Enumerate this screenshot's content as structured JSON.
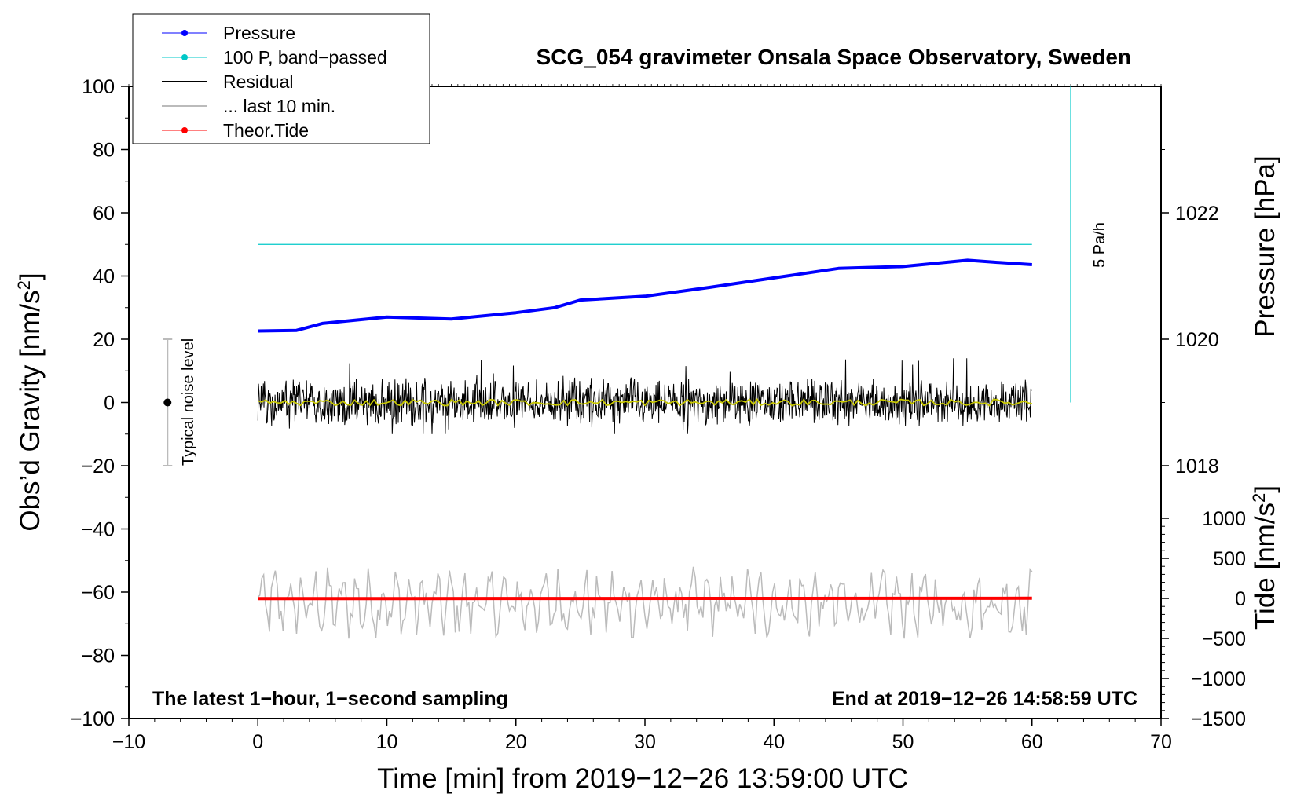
{
  "chart_data": {
    "type": "line",
    "title": "SCG_054 gravimeter Onsala Space Observatory, Sweden",
    "xlabel": "Time [min] from 2019−12−26 13:59:00 UTC",
    "ylabel": "Obs’d Gravity [nm/s",
    "ylabel_sup": "2",
    "ylabel_close": "]",
    "y2label_pressure": "Pressure [hPa]",
    "y2label_tide": "Tide [nm/s",
    "y2label_tide_sup": "2",
    "y2label_tide_close": "]",
    "xlim": [
      -10,
      70
    ],
    "ylim": [
      -100,
      100
    ],
    "x_ticks": [
      -10,
      0,
      10,
      20,
      30,
      40,
      50,
      60,
      70
    ],
    "x_tick_labels": [
      "−10",
      "0",
      "10",
      "20",
      "30",
      "40",
      "50",
      "60",
      "70"
    ],
    "y_ticks": [
      -100,
      -80,
      -60,
      -40,
      -20,
      0,
      20,
      40,
      60,
      80,
      100
    ],
    "y_tick_labels": [
      "−100",
      "−80",
      "−60",
      "−40",
      "−20",
      "0",
      "20",
      "40",
      "60",
      "80",
      "100"
    ],
    "pressure_ticks": [
      1018,
      1020,
      1022
    ],
    "pressure_tick_labels": [
      "1018",
      "1020",
      "1022"
    ],
    "tide_ticks": [
      -1500,
      -1000,
      -500,
      0,
      500,
      1000
    ],
    "tide_tick_labels": [
      "−1500",
      "−1000",
      "−500",
      "0",
      "500",
      "1000"
    ],
    "pressure_axis_range_hPa": [
      1014,
      1024
    ],
    "tide_axis_range_nm_s2": [
      -1500,
      1000
    ],
    "legend": [
      {
        "label": "Pressure",
        "color": "#0000ff",
        "marker": "dot"
      },
      {
        "label": "100 P, band−passed",
        "color": "#00c8c8",
        "marker": "dot"
      },
      {
        "label": "Residual",
        "color": "#000000",
        "marker": "line"
      },
      {
        "label": "... last 10 min.",
        "color": "#bbbbbb",
        "marker": "line"
      },
      {
        "label": "Theor.Tide",
        "color": "#ff0000",
        "marker": "dot"
      }
    ],
    "series": [
      {
        "name": "Pressure",
        "axis": "pressure",
        "color": "#0000ff",
        "x": [
          0,
          3,
          5,
          10,
          15,
          20,
          23,
          25,
          30,
          35,
          40,
          45,
          50,
          55,
          57,
          60
        ],
        "values": [
          1020.13,
          1020.14,
          1020.25,
          1020.35,
          1020.32,
          1020.42,
          1020.5,
          1020.62,
          1020.68,
          1020.82,
          1020.97,
          1021.12,
          1021.15,
          1021.25,
          1021.22,
          1021.18
        ]
      },
      {
        "name": "100 P, band−passed",
        "axis": "left",
        "color": "#00c8c8",
        "x": [
          0,
          60
        ],
        "values": [
          50,
          50
        ]
      },
      {
        "name": "Residual",
        "axis": "left",
        "color": "#000000",
        "x": [
          0,
          60
        ],
        "envelope": [
          -10,
          14
        ],
        "note": "1-second samples, noise about 0 nm/s2"
      },
      {
        "name": "Residual smoothed",
        "axis": "left",
        "color": "#c8c800",
        "x": [
          0,
          60
        ],
        "values": [
          0,
          0
        ]
      },
      {
        "name": "... last 10 min.",
        "axis": "left",
        "color": "#bbbbbb",
        "x": [
          0,
          60
        ],
        "envelope": [
          -75,
          -52
        ]
      },
      {
        "name": "Theor.Tide",
        "axis": "tide",
        "color": "#ff0000",
        "x": [
          0,
          60
        ],
        "values": [
          -3,
          2
        ]
      }
    ],
    "noise_bar": {
      "label": "Typical noise level",
      "x": -7,
      "center": 0,
      "range": [
        -20,
        20
      ]
    },
    "scale_bar": {
      "label": "5 Pa/h",
      "x": 63,
      "range_left_axis": [
        0,
        100
      ]
    },
    "bottom_left_label": "The latest 1−hour, 1−second sampling",
    "bottom_right_label": "End at 2019−12−26 14:58:59 UTC"
  }
}
